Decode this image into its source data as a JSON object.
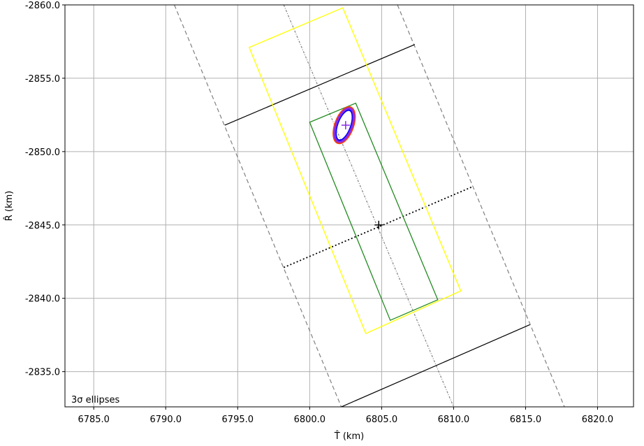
{
  "chart_data": {
    "type": "line",
    "title": "",
    "xlabel": "T̂ (km)",
    "ylabel": "R̂ (km)",
    "xlim": [
      6783.0,
      6822.5
    ],
    "ylim": [
      -2832.6,
      -2860.0
    ],
    "y_inverted": true,
    "grid": true,
    "annotation": "3σ ellipses",
    "annotation_position": "bottom-left",
    "xticks": [
      6785.0,
      6790.0,
      6795.0,
      6800.0,
      6805.0,
      6810.0,
      6815.0,
      6820.0
    ],
    "xtick_labels": [
      "6785.0",
      "6790.0",
      "6795.0",
      "6800.0",
      "6805.0",
      "6810.0",
      "6815.0",
      "6820.0"
    ],
    "yticks": [
      -2835.0,
      -2840.0,
      -2845.0,
      -2850.0,
      -2855.0,
      -2860.0
    ],
    "ytick_labels": [
      "-2835.0",
      "-2840.0",
      "-2845.0",
      "-2850.0",
      "-2855.0",
      "-2860.0"
    ],
    "lines": [
      {
        "name": "dashed-boundary-left",
        "color": "#808080",
        "style": "dashed",
        "points": [
          [
            6790.6,
            -2860.0
          ],
          [
            6802.2,
            -2832.6
          ]
        ]
      },
      {
        "name": "dashed-boundary-right",
        "color": "#808080",
        "style": "dashed",
        "points": [
          [
            6806.1,
            -2860.0
          ],
          [
            6817.7,
            -2832.6
          ]
        ]
      },
      {
        "name": "dashdot-centerline",
        "color": "#808080",
        "style": "dashdot",
        "points": [
          [
            6798.2,
            -2860.0
          ],
          [
            6810.0,
            -2832.6
          ]
        ]
      },
      {
        "name": "solid-crossline-upper",
        "color": "#000000",
        "style": "solid",
        "points": [
          [
            6794.1,
            -2851.8
          ],
          [
            6807.3,
            -2857.3
          ]
        ]
      },
      {
        "name": "dotted-crossline-middle",
        "color": "#000000",
        "style": "dotted",
        "points": [
          [
            6798.2,
            -2842.1
          ],
          [
            6811.3,
            -2847.6
          ]
        ]
      },
      {
        "name": "solid-crossline-lower",
        "color": "#000000",
        "style": "solid",
        "points": [
          [
            6802.2,
            -2832.6
          ],
          [
            6815.3,
            -2838.2
          ]
        ]
      }
    ],
    "polygons": [
      {
        "name": "yellow-rectangle",
        "color": "#ffff00",
        "points": [
          [
            6795.8,
            -2857.1
          ],
          [
            6802.3,
            -2859.8
          ],
          [
            6810.5,
            -2840.5
          ],
          [
            6803.9,
            -2837.6
          ]
        ]
      },
      {
        "name": "green-rectangle",
        "color": "#228b22",
        "points": [
          [
            6800.0,
            -2852.0
          ],
          [
            6803.2,
            -2853.3
          ],
          [
            6808.9,
            -2839.9
          ],
          [
            6805.6,
            -2838.5
          ]
        ]
      }
    ],
    "ellipses": [
      {
        "name": "red-ellipse",
        "color": "#ff4500",
        "cx": 6802.4,
        "cy": -2851.8,
        "rx": 0.62,
        "ry": 1.28,
        "rotation_deg": 20
      },
      {
        "name": "blue-ellipse",
        "color": "#0000ff",
        "cx": 6802.4,
        "cy": -2851.8,
        "rx": 0.48,
        "ry": 1.1,
        "rotation_deg": 20
      },
      {
        "name": "purple-ellipse",
        "color": "#8a2be2",
        "cx": 6802.4,
        "cy": -2851.8,
        "rx": 0.55,
        "ry": 1.2,
        "rotation_deg": 20
      }
    ],
    "markers": [
      {
        "name": "center-plus",
        "color": "#000000",
        "x": 6804.8,
        "y": -2845.0
      },
      {
        "name": "ellipse-plus",
        "color": "#8a2be2",
        "x": 6802.5,
        "y": -2851.8
      }
    ]
  }
}
